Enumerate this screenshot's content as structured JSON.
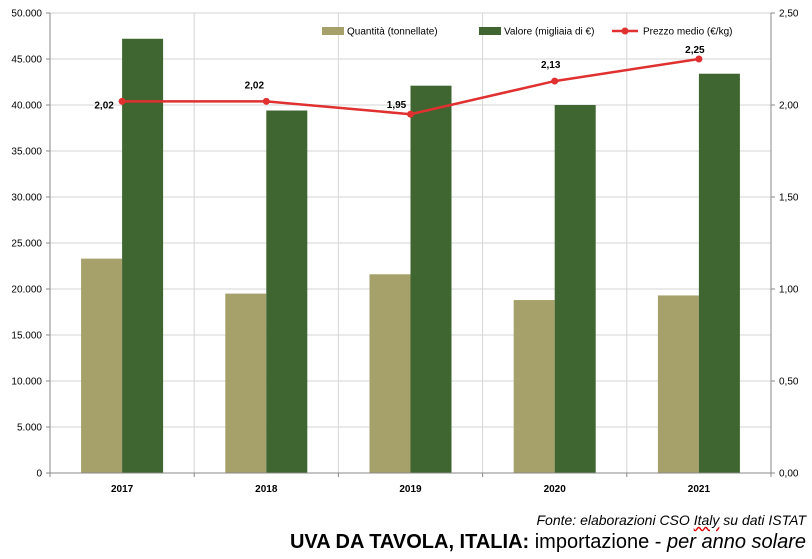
{
  "chart_data": {
    "type": "bar",
    "title": "UVA DA TAVOLA, ITALIA: importazione - per anno solare",
    "categories": [
      "2017",
      "2018",
      "2019",
      "2020",
      "2021"
    ],
    "series": [
      {
        "name": "Quantità (tonnellate)",
        "kind": "bar",
        "axis": "left",
        "color": "#a6a06a",
        "values": [
          23300,
          19500,
          21600,
          18800,
          19300
        ]
      },
      {
        "name": "Valore (migliaia di €)",
        "kind": "bar",
        "axis": "left",
        "color": "#3f6530",
        "values": [
          47200,
          39400,
          42100,
          40000,
          43400
        ]
      },
      {
        "name": "Prezzo medio (€/kg)",
        "kind": "line",
        "axis": "right",
        "color": "#e03030",
        "values": [
          2.02,
          2.02,
          1.95,
          2.13,
          2.25
        ],
        "labels": [
          "2,02",
          "2,02",
          "1,95",
          "2,13",
          "2,25"
        ]
      }
    ],
    "y_left": {
      "min": 0,
      "max": 50000,
      "step": 5000,
      "tick_labels": [
        "0",
        "5.000",
        "10.000",
        "15.000",
        "20.000",
        "25.000",
        "30.000",
        "35.000",
        "40.000",
        "45.000",
        "50.000"
      ]
    },
    "y_right": {
      "min": 0,
      "max": 2.5,
      "step": 0.5,
      "tick_labels": [
        "0,00",
        "0,50",
        "1,00",
        "1,50",
        "2,00",
        "2,50"
      ]
    },
    "grid": true,
    "legend_position": "top-right"
  },
  "footer": {
    "source_prefix": "Fonte: elaborazioni CSO ",
    "source_italy": "Italy",
    "source_suffix": " su dati ISTAT",
    "title_bold": "UVA DA TAVOLA, ITALIA:",
    "title_normal": " importazione - ",
    "title_italic": "per anno solare"
  }
}
